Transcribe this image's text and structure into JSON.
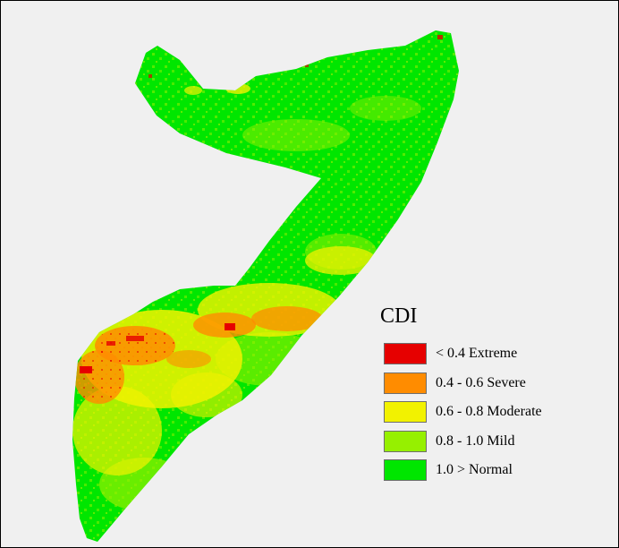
{
  "legend": {
    "title": "CDI",
    "items": [
      {
        "label": "< 0.4 Extreme",
        "color": "#e60000"
      },
      {
        "label": "0.4 - 0.6 Severe",
        "color": "#ff8c00"
      },
      {
        "label": "0.6 - 0.8 Moderate",
        "color": "#f2f200"
      },
      {
        "label": "0.8 - 1.0 Mild",
        "color": "#96f000"
      },
      {
        "label": "1.0 > Normal",
        "color": "#00e600"
      }
    ]
  },
  "map": {
    "background_color": "#f0f0f0",
    "region": "Somalia"
  }
}
